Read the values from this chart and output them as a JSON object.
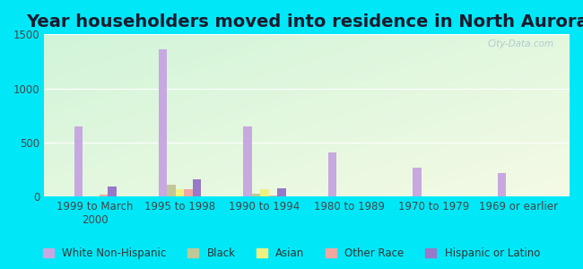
{
  "title": "Year householders moved into residence in North Aurora",
  "categories": [
    "1999 to March\n2000",
    "1995 to 1998",
    "1990 to 1994",
    "1980 to 1989",
    "1970 to 1979",
    "1969 or earlier"
  ],
  "series": {
    "White Non-Hispanic": [
      650,
      1365,
      650,
      410,
      265,
      215
    ],
    "Black": [
      5,
      110,
      25,
      5,
      5,
      0
    ],
    "Asian": [
      5,
      70,
      70,
      5,
      0,
      0
    ],
    "Other Race": [
      20,
      65,
      10,
      5,
      5,
      0
    ],
    "Hispanic or Latino": [
      90,
      160,
      75,
      5,
      0,
      0
    ]
  },
  "colors": {
    "White Non-Hispanic": "#c8a8e0",
    "Black": "#c0c898",
    "Asian": "#f0f080",
    "Other Race": "#f0a8a0",
    "Hispanic or Latino": "#9878c8"
  },
  "ylim": [
    0,
    1500
  ],
  "yticks": [
    0,
    500,
    1000,
    1500
  ],
  "outer_bg": "#00e8f8",
  "plot_bg": "#e8f5e8",
  "watermark": "City-Data.com",
  "title_fontsize": 14,
  "tick_fontsize": 8.5,
  "legend_fontsize": 8.5
}
